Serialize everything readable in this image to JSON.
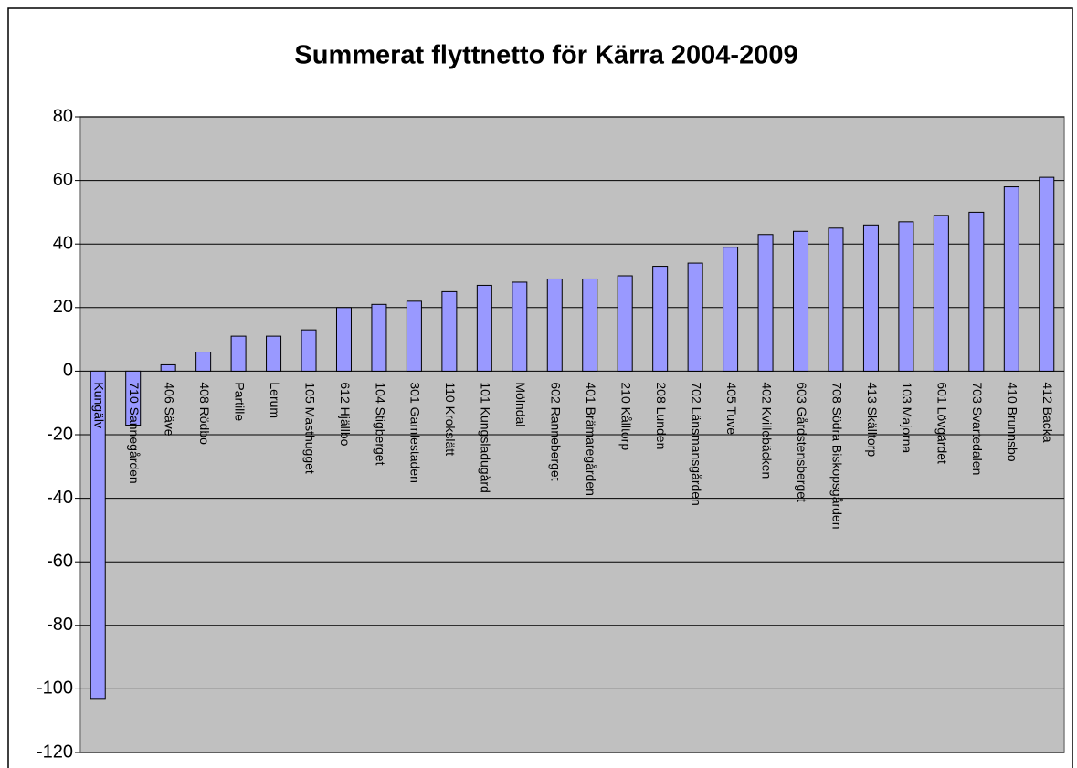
{
  "chart_data": {
    "type": "bar",
    "title": "Summerat flyttnetto för Kärra 2004-2009",
    "categories": [
      "Kungälv",
      "710 Sannegården",
      "406 Säve",
      "408 Rödbo",
      "Partille",
      "Lerum",
      "105 Masthugget",
      "612 Hjällbo",
      "104 Stigberget",
      "301 Gamlestaden",
      "110 Krokslätt",
      "101 Kungsladugård",
      "Mölndal",
      "602 Ranneberget",
      "401 Brämaregården",
      "210 Kålltorp",
      "208 Lunden",
      "702 Länsmansgården",
      "405 Tuve",
      "402 Kvillebäcken",
      "603 Gårdstensberget",
      "708 Södra Biskopsgården",
      "413 Skälltorp",
      "103 Majorna",
      "601 Lövgärdet",
      "703 Svartedalen",
      "410 Brunnsbo",
      "412 Backa"
    ],
    "values": [
      -103,
      -17,
      2,
      6,
      11,
      11,
      13,
      20,
      21,
      22,
      25,
      27,
      28,
      29,
      29,
      30,
      33,
      34,
      39,
      43,
      44,
      45,
      46,
      47,
      49,
      50,
      58,
      61
    ],
    "color": "#9999ff",
    "ylim": [
      -120,
      80
    ],
    "yticks": [
      -120,
      -100,
      -80,
      -60,
      -40,
      -20,
      0,
      20,
      40,
      60,
      80
    ],
    "grid": true
  }
}
